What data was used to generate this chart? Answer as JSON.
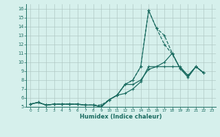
{
  "xlabel": "Humidex (Indice chaleur)",
  "bg_color": "#d6f0ec",
  "grid_color": "#b0c8c4",
  "line_color": "#1a6b60",
  "xlim": [
    -0.5,
    23.5
  ],
  "ylim": [
    5,
    16.5
  ],
  "yticks": [
    5,
    6,
    7,
    8,
    9,
    10,
    11,
    12,
    13,
    14,
    15,
    16
  ],
  "xticks": [
    0,
    1,
    2,
    3,
    4,
    5,
    6,
    7,
    8,
    9,
    10,
    11,
    12,
    13,
    14,
    15,
    16,
    17,
    18,
    19,
    20,
    21,
    22,
    23
  ],
  "series": [
    {
      "x": [
        0,
        1,
        2,
        3,
        4,
        5,
        6,
        7,
        8,
        9,
        10,
        11,
        12,
        13,
        14,
        15,
        16,
        17,
        18,
        19,
        20,
        21,
        22
      ],
      "y": [
        5.3,
        5.5,
        5.2,
        5.3,
        5.3,
        5.3,
        5.3,
        5.2,
        5.2,
        5.0,
        5.8,
        6.3,
        6.5,
        7.0,
        7.8,
        9.5,
        9.5,
        10.0,
        11.0,
        9.3,
        8.3,
        9.5,
        8.8
      ],
      "linestyle": "-",
      "linewidth": 0.9
    },
    {
      "x": [
        0,
        1,
        2,
        3,
        4,
        5,
        6,
        7,
        8,
        9,
        10,
        11,
        12,
        13,
        14,
        15,
        16,
        17,
        18,
        19,
        20,
        21,
        22
      ],
      "y": [
        5.3,
        5.5,
        5.2,
        5.3,
        5.3,
        5.3,
        5.3,
        5.2,
        5.2,
        5.0,
        5.8,
        6.3,
        7.5,
        7.5,
        8.0,
        9.2,
        9.5,
        9.5,
        9.5,
        9.5,
        8.5,
        9.5,
        8.8
      ],
      "linestyle": "-",
      "linewidth": 0.9
    },
    {
      "x": [
        0,
        1,
        2,
        3,
        4,
        5,
        6,
        7,
        8,
        9,
        10,
        11,
        12,
        13,
        14,
        15,
        16,
        17,
        18,
        19,
        20,
        21,
        22
      ],
      "y": [
        5.3,
        5.5,
        5.2,
        5.3,
        5.3,
        5.3,
        5.3,
        5.2,
        5.2,
        5.0,
        5.8,
        6.3,
        7.5,
        8.0,
        9.5,
        15.8,
        13.8,
        13.0,
        11.0,
        9.3,
        8.5,
        9.5,
        8.8
      ],
      "linestyle": "--",
      "linewidth": 0.9
    },
    {
      "x": [
        0,
        1,
        2,
        3,
        4,
        5,
        6,
        7,
        8,
        9,
        10,
        11,
        12,
        13,
        14,
        15,
        16,
        17,
        18,
        19,
        20,
        21,
        22
      ],
      "y": [
        5.3,
        5.5,
        5.2,
        5.3,
        5.3,
        5.3,
        5.3,
        5.2,
        5.2,
        5.2,
        5.8,
        6.3,
        7.5,
        8.0,
        9.5,
        15.8,
        13.8,
        12.0,
        10.9,
        9.3,
        8.5,
        9.5,
        8.8
      ],
      "linestyle": "--",
      "linewidth": 0.9
    }
  ]
}
